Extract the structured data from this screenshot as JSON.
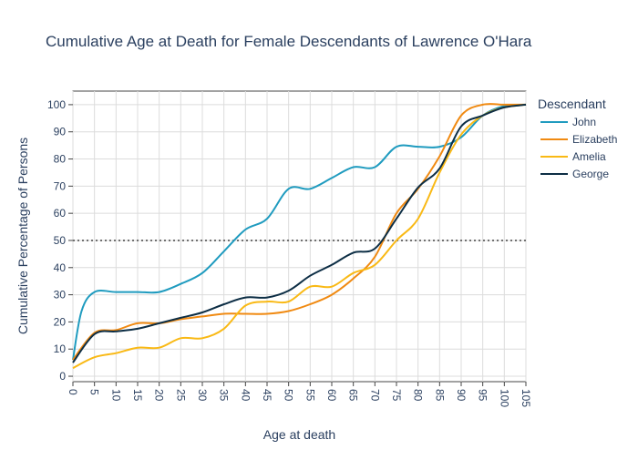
{
  "chart_data": {
    "type": "line",
    "title": "Cumulative Age at Death for Female Descendants of Lawrence O'Hara",
    "xlabel": "Age at death",
    "ylabel": "Cumulative Percentage of Persons",
    "xlim": [
      0,
      105
    ],
    "ylim": [
      -2,
      105
    ],
    "xticks": [
      0,
      5,
      10,
      15,
      20,
      25,
      30,
      35,
      40,
      45,
      50,
      55,
      60,
      65,
      70,
      75,
      80,
      85,
      90,
      95,
      100,
      105
    ],
    "yticks": [
      0,
      10,
      20,
      30,
      40,
      50,
      60,
      70,
      80,
      90,
      100
    ],
    "grid": true,
    "reference_line": {
      "y": 50,
      "style": "dotted",
      "color": "#707070"
    },
    "legend": {
      "title": "Descendant",
      "placement": "right"
    },
    "series": [
      {
        "name": "John",
        "color": "#1f9bbf",
        "points": [
          [
            0,
            6
          ],
          [
            2,
            24
          ],
          [
            5,
            31
          ],
          [
            10,
            31
          ],
          [
            15,
            31
          ],
          [
            20,
            31
          ],
          [
            25,
            34
          ],
          [
            30,
            38
          ],
          [
            35,
            46
          ],
          [
            40,
            54
          ],
          [
            45,
            58
          ],
          [
            50,
            69
          ],
          [
            55,
            69
          ],
          [
            60,
            73
          ],
          [
            65,
            77
          ],
          [
            70,
            77
          ],
          [
            75,
            84.5
          ],
          [
            80,
            84.5
          ],
          [
            85,
            84.5
          ],
          [
            90,
            88
          ],
          [
            95,
            96
          ],
          [
            100,
            99.5
          ],
          [
            105,
            100
          ]
        ]
      },
      {
        "name": "Elizabeth",
        "color": "#f08a12",
        "points": [
          [
            0,
            6
          ],
          [
            5,
            16
          ],
          [
            10,
            17
          ],
          [
            15,
            19.5
          ],
          [
            20,
            19.5
          ],
          [
            25,
            21
          ],
          [
            30,
            22
          ],
          [
            35,
            23
          ],
          [
            40,
            23
          ],
          [
            45,
            23
          ],
          [
            50,
            24
          ],
          [
            55,
            26.5
          ],
          [
            60,
            30
          ],
          [
            65,
            36
          ],
          [
            70,
            44
          ],
          [
            75,
            60
          ],
          [
            80,
            69
          ],
          [
            85,
            81
          ],
          [
            90,
            96
          ],
          [
            95,
            100
          ],
          [
            100,
            100
          ],
          [
            105,
            100
          ]
        ]
      },
      {
        "name": "Amelia",
        "color": "#f9b915",
        "points": [
          [
            0,
            3
          ],
          [
            5,
            7
          ],
          [
            10,
            8.5
          ],
          [
            15,
            10.5
          ],
          [
            20,
            10.5
          ],
          [
            25,
            14
          ],
          [
            30,
            14
          ],
          [
            35,
            17.5
          ],
          [
            40,
            26
          ],
          [
            45,
            27.5
          ],
          [
            50,
            27.5
          ],
          [
            55,
            33
          ],
          [
            60,
            33
          ],
          [
            65,
            38
          ],
          [
            70,
            41
          ],
          [
            75,
            50
          ],
          [
            80,
            58
          ],
          [
            85,
            75
          ],
          [
            90,
            89
          ],
          [
            95,
            96
          ],
          [
            100,
            99
          ],
          [
            105,
            100
          ]
        ]
      },
      {
        "name": "George",
        "color": "#0d2e45",
        "points": [
          [
            0,
            5
          ],
          [
            5,
            15.5
          ],
          [
            10,
            16.5
          ],
          [
            15,
            17.5
          ],
          [
            20,
            19.5
          ],
          [
            25,
            21.5
          ],
          [
            30,
            23.5
          ],
          [
            35,
            26.5
          ],
          [
            40,
            29
          ],
          [
            45,
            29
          ],
          [
            50,
            31.5
          ],
          [
            55,
            37
          ],
          [
            60,
            41
          ],
          [
            65,
            45.5
          ],
          [
            70,
            47
          ],
          [
            75,
            58
          ],
          [
            80,
            69.5
          ],
          [
            85,
            76.5
          ],
          [
            90,
            92
          ],
          [
            95,
            96
          ],
          [
            100,
            99
          ],
          [
            105,
            100
          ]
        ]
      }
    ]
  }
}
